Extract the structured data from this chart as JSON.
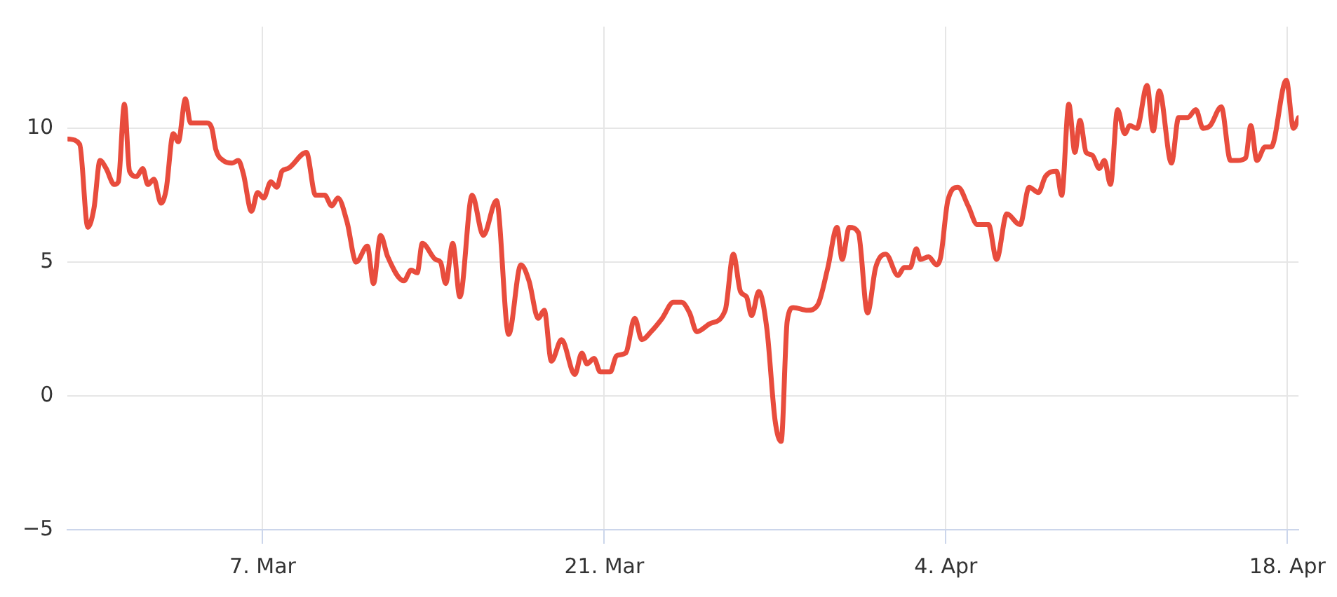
{
  "chart_data": {
    "type": "line",
    "x": [
      "--02-27T01:00",
      "--02-27T12:00",
      "--02-27T20:00",
      "--02-28T02:00",
      "--02-28T08:00",
      "--02-28T14:00",
      "--02-28T22:00",
      "--03-01T02:00",
      "--03-01T08:00",
      "--03-01T13:00",
      "--03-01T20:00",
      "--03-02T02:00",
      "--03-02T07:00",
      "--03-02T13:00",
      "--03-02T20:00",
      "--03-03T01:00",
      "--03-03T08:00",
      "--03-03T13:00",
      "--03-03T20:00",
      "--03-04T01:00",
      "--03-04T17:00",
      "--03-04T22:00",
      "--03-05T02:00",
      "--03-05T09:00",
      "--03-05T18:00",
      "--03-06T00:00",
      "--03-06T05:00",
      "--03-06T13:00",
      "--03-06T19:00",
      "--03-07T01:00",
      "--03-07T08:00",
      "--03-07T14:00",
      "--03-07T19:00",
      "--03-08T01:00",
      "--03-08T19:00",
      "--03-09T04:00",
      "--03-09T13:00",
      "--03-09T20:00",
      "--03-10T02:00",
      "--03-10T11:00",
      "--03-10T20:00",
      "--03-11T07:00",
      "--03-11T13:00",
      "--03-11T20:00",
      "--03-12T03:00",
      "--03-12T19:00",
      "--03-13T02:00",
      "--03-13T08:00",
      "--03-13T13:00",
      "--03-14T02:00",
      "--03-14T07:00",
      "--03-14T12:00",
      "--03-14T19:00",
      "--03-15T02:00",
      "--03-15T14:00",
      "--03-16T01:00",
      "--03-16T14:00",
      "--03-17T02:00",
      "--03-17T14:00",
      "--03-17T22:00",
      "--03-18T07:00",
      "--03-18T13:00",
      "--03-18T20:00",
      "--03-19T06:00",
      "--03-19T19:00",
      "--03-20T02:00",
      "--03-20T07:00",
      "--03-20T14:00",
      "--03-20T20:00",
      "--03-21T06:00",
      "--03-21T12:00",
      "--03-21T21:00",
      "--03-22T06:00",
      "--03-22T13:00",
      "--03-22T22:00",
      "--03-23T09:00",
      "--03-23T20:00",
      "--03-24T04:00",
      "--03-24T12:00",
      "--03-24T19:00",
      "--03-25T08:00",
      "--03-25T23:00",
      "--03-26T07:00",
      "--03-26T14:00",
      "--03-26T20:00",
      "--03-27T01:00",
      "--03-27T08:00",
      "--03-27T16:00",
      "--03-28T00:00",
      "--03-28T06:00",
      "--03-28T12:00",
      "--03-28T18:00",
      "--03-29T08:00",
      "--03-29T18:00",
      "--03-30T04:00",
      "--03-30T13:00",
      "--03-30T18:00",
      "--03-31T01:00",
      "--03-31T10:00",
      "--03-31T19:00",
      "--04-01T03:00",
      "--04-01T13:00",
      "--04-02T01:00",
      "--04-02T07:00",
      "--04-02T13:00",
      "--04-02T19:00",
      "--04-02T23:00",
      "--04-03T07:00",
      "--04-03T15:00",
      "--04-03T19:00",
      "--04-04T02:00",
      "--04-04T12:00",
      "--04-04T22:00",
      "--04-05T07:00",
      "--04-05T18:00",
      "--04-06T02:00",
      "--04-06T12:00",
      "--04-07T01:00",
      "--04-07T10:00",
      "--04-07T19:00",
      "--04-08T02:00",
      "--04-08T13:00",
      "--04-08T18:00",
      "--04-09T01:00",
      "--04-09T07:00",
      "--04-09T12:00",
      "--04-09T18:00",
      "--04-10T00:00",
      "--04-10T07:00",
      "--04-10T12:00",
      "--04-10T18:00",
      "--04-11T01:00",
      "--04-11T08:00",
      "--04-11T13:00",
      "--04-11T20:00",
      "--04-12T06:00",
      "--04-12T12:00",
      "--04-12T18:00",
      "--04-13T06:00",
      "--04-13T13:00",
      "--04-13T22:00",
      "--04-14T06:00",
      "--04-14T13:00",
      "--04-14T20:00",
      "--04-15T07:00",
      "--04-15T16:00",
      "--04-15T23:00",
      "--04-16T07:00",
      "--04-16T12:00",
      "--04-16T18:00",
      "--04-17T02:00",
      "--04-17T08:00",
      "--04-17T23:00",
      "--04-18T06:00",
      "--04-18T11:00"
    ],
    "series": [
      {
        "color": "#e84c3d",
        "values": [
          9.6,
          9.4,
          6.3,
          7.0,
          8.8,
          8.5,
          7.9,
          8.0,
          10.9,
          8.4,
          8.2,
          8.5,
          7.9,
          8.1,
          7.2,
          7.7,
          9.8,
          9.5,
          11.1,
          10.2,
          10.2,
          10.0,
          9.2,
          8.8,
          8.7,
          8.8,
          8.3,
          6.9,
          7.6,
          7.4,
          8.0,
          7.8,
          8.4,
          8.5,
          9.1,
          7.5,
          7.5,
          7.1,
          7.4,
          6.5,
          5.0,
          5.6,
          4.2,
          6.0,
          5.2,
          4.3,
          4.7,
          4.6,
          5.7,
          5.1,
          5.0,
          4.2,
          5.7,
          3.7,
          7.5,
          6.0,
          7.3,
          2.3,
          4.9,
          4.3,
          2.9,
          3.2,
          1.3,
          2.1,
          0.8,
          1.6,
          1.2,
          1.4,
          0.9,
          0.9,
          1.5,
          1.6,
          2.9,
          2.1,
          2.4,
          2.9,
          3.5,
          3.5,
          3.1,
          2.4,
          2.7,
          3.2,
          5.3,
          3.9,
          3.7,
          3.0,
          3.9,
          2.5,
          -0.9,
          -1.7,
          2.8,
          3.3,
          3.2,
          3.4,
          4.8,
          6.3,
          5.1,
          6.3,
          6.1,
          3.1,
          4.8,
          5.3,
          4.5,
          4.8,
          4.8,
          5.5,
          5.1,
          5.2,
          4.9,
          5.2,
          7.3,
          7.8,
          7.1,
          6.4,
          6.4,
          5.1,
          6.8,
          6.4,
          7.8,
          7.6,
          8.2,
          8.4,
          7.5,
          10.9,
          9.1,
          10.3,
          9.1,
          9.0,
          8.5,
          8.8,
          7.9,
          10.7,
          9.8,
          10.1,
          10.0,
          11.6,
          9.9,
          11.4,
          8.7,
          10.4,
          10.4,
          10.7,
          10.0,
          10.1,
          10.8,
          8.8,
          8.8,
          8.9,
          10.1,
          8.8,
          9.3,
          9.3,
          11.8,
          10.0,
          10.4
        ]
      }
    ],
    "xlim": [
      "--02-27T00:00",
      "--04-18T11:00"
    ],
    "xticks": [
      {
        "value": "--03-07",
        "label": "7. Mar"
      },
      {
        "value": "--03-21",
        "label": "21. Mar"
      },
      {
        "value": "--04-04",
        "label": "4. Apr"
      },
      {
        "value": "--04-18",
        "label": "18. Apr"
      }
    ],
    "ylim": [
      -5,
      13.8
    ],
    "yticks": [
      {
        "value": -5,
        "label": "−5"
      },
      0,
      5,
      10
    ],
    "grid": true,
    "marker": "none",
    "line_style": "solid"
  }
}
